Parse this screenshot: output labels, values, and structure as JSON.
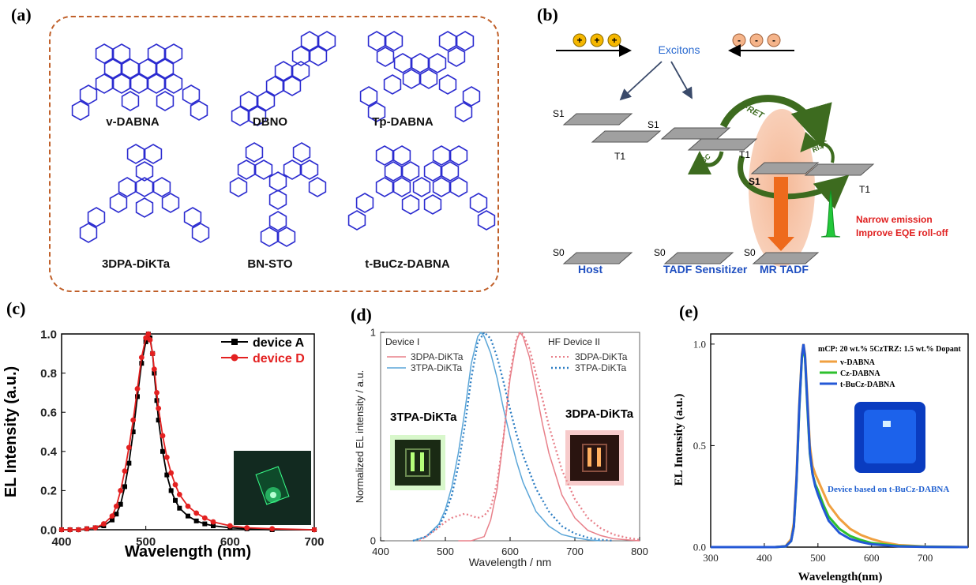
{
  "labels": {
    "a": "(a)",
    "b": "(b)",
    "c": "(c)",
    "d": "(d)",
    "e": "(e)"
  },
  "molecules": [
    "v-DABNA",
    "DBNO",
    "Tp-DABNA",
    "3DPA-DiKTa",
    "BN-STO",
    "t-BuCz-DABNA"
  ],
  "scheme": {
    "excitons": "Excitons",
    "plus": "+",
    "minus": "-",
    "fret": "FRET",
    "risc": "RISC",
    "s1": "S1",
    "t1": "T1",
    "s0": "S0",
    "host": "Host",
    "tadf_sensitizer": "TADF Sensitizer",
    "mr_tadf": "MR TADF",
    "narrow_emission": "Narrow emission",
    "improve_eqe": "Improve EQE roll-off",
    "colors": {
      "blue_label": "#1f4fc0",
      "red_note": "#e02020",
      "arrow_green": "#3d6b1f",
      "glow": "#f4b08a"
    }
  },
  "chart_data": [
    {
      "type": "line",
      "panel": "c",
      "xlabel": "Wavelength (nm)",
      "ylabel": "EL Intensity  (a.u.)",
      "xlim": [
        400,
        700
      ],
      "ylim": [
        0,
        1.0
      ],
      "xticks": [
        400,
        500,
        600,
        700
      ],
      "yticks": [
        "0.0",
        "0.2",
        "0.4",
        "0.6",
        "0.8",
        "1.0"
      ],
      "legend": "top-right",
      "series": [
        {
          "name": "device A",
          "color": "#000000",
          "marker": "square",
          "x": [
            400,
            410,
            420,
            430,
            440,
            450,
            460,
            465,
            470,
            475,
            480,
            485,
            490,
            495,
            500,
            503,
            505,
            508,
            510,
            513,
            515,
            520,
            525,
            530,
            535,
            540,
            550,
            560,
            570,
            580,
            600,
            620,
            650,
            700
          ],
          "y": [
            0,
            0,
            0,
            0.005,
            0.01,
            0.02,
            0.05,
            0.08,
            0.13,
            0.22,
            0.34,
            0.5,
            0.68,
            0.85,
            0.96,
            1.0,
            0.98,
            0.9,
            0.8,
            0.66,
            0.56,
            0.4,
            0.28,
            0.2,
            0.15,
            0.11,
            0.07,
            0.045,
            0.03,
            0.02,
            0.01,
            0.005,
            0,
            0
          ]
        },
        {
          "name": "device D",
          "color": "#e32020",
          "marker": "circle",
          "x": [
            400,
            410,
            420,
            430,
            440,
            450,
            460,
            465,
            470,
            475,
            480,
            485,
            490,
            495,
            500,
            503,
            505,
            508,
            510,
            513,
            515,
            520,
            525,
            530,
            535,
            540,
            550,
            560,
            570,
            580,
            600,
            620,
            650,
            700
          ],
          "y": [
            0,
            0,
            0,
            0.005,
            0.01,
            0.03,
            0.07,
            0.12,
            0.2,
            0.3,
            0.42,
            0.56,
            0.72,
            0.88,
            0.98,
            1.0,
            0.97,
            0.9,
            0.82,
            0.7,
            0.62,
            0.48,
            0.37,
            0.29,
            0.23,
            0.18,
            0.12,
            0.085,
            0.06,
            0.04,
            0.02,
            0.01,
            0.005,
            0
          ]
        }
      ]
    },
    {
      "type": "line",
      "panel": "d",
      "xlabel": "Wavelength / nm",
      "ylabel": "Normalized EL intensity / a.u.",
      "xlim": [
        400,
        800
      ],
      "ylim": [
        0,
        1
      ],
      "xticks": [
        400,
        500,
        600,
        700,
        800
      ],
      "yticks": [
        "0",
        "1"
      ],
      "legend_titles": [
        "Device I",
        "HF Device II"
      ],
      "device_labels": [
        "3TPA-DiKTa",
        "3DPA-DiKTa"
      ],
      "series": [
        {
          "name": "3DPA-DiKTa",
          "group": "Device I",
          "color": "#e8808a",
          "dash": "solid",
          "x": [
            520,
            540,
            560,
            570,
            580,
            590,
            600,
            610,
            615,
            620,
            630,
            640,
            650,
            660,
            680,
            700,
            720,
            740,
            760,
            780,
            800
          ],
          "y": [
            0,
            0,
            0.02,
            0.1,
            0.25,
            0.5,
            0.78,
            0.96,
            1.0,
            0.98,
            0.88,
            0.72,
            0.56,
            0.42,
            0.22,
            0.11,
            0.05,
            0.025,
            0.01,
            0.005,
            0
          ]
        },
        {
          "name": "3TPA-DiKTa",
          "group": "Device I",
          "color": "#5ba6d8",
          "dash": "solid",
          "x": [
            450,
            470,
            490,
            500,
            510,
            520,
            530,
            540,
            550,
            555,
            560,
            570,
            580,
            590,
            600,
            610,
            620,
            640,
            660,
            680,
            700,
            720,
            740
          ],
          "y": [
            0,
            0.02,
            0.08,
            0.15,
            0.26,
            0.42,
            0.62,
            0.85,
            0.98,
            1.0,
            0.98,
            0.9,
            0.78,
            0.63,
            0.5,
            0.38,
            0.28,
            0.14,
            0.07,
            0.03,
            0.015,
            0.005,
            0
          ]
        },
        {
          "name": "3DPA-DiKTa",
          "group": "HF Device II",
          "color": "#e8808a",
          "dash": "dotted",
          "x": [
            460,
            480,
            500,
            510,
            520,
            530,
            540,
            550,
            560,
            570,
            580,
            590,
            600,
            610,
            615,
            620,
            630,
            640,
            650,
            660,
            680,
            700,
            720,
            740,
            760,
            780,
            800
          ],
          "y": [
            0,
            0.04,
            0.09,
            0.11,
            0.12,
            0.13,
            0.12,
            0.11,
            0.12,
            0.16,
            0.28,
            0.5,
            0.8,
            0.97,
            1.0,
            0.99,
            0.92,
            0.8,
            0.68,
            0.55,
            0.34,
            0.2,
            0.11,
            0.06,
            0.03,
            0.015,
            0.005
          ]
        },
        {
          "name": "3TPA-DiKTa",
          "group": "HF Device II",
          "color": "#2f7fc4",
          "dash": "dotted",
          "x": [
            450,
            470,
            490,
            500,
            510,
            520,
            530,
            540,
            550,
            560,
            570,
            580,
            590,
            600,
            610,
            620,
            640,
            660,
            680,
            700,
            720,
            740,
            760
          ],
          "y": [
            0,
            0.02,
            0.07,
            0.13,
            0.22,
            0.36,
            0.55,
            0.78,
            0.95,
            1.0,
            0.97,
            0.88,
            0.76,
            0.63,
            0.51,
            0.41,
            0.25,
            0.14,
            0.07,
            0.035,
            0.015,
            0.005,
            0
          ]
        }
      ]
    },
    {
      "type": "line",
      "panel": "e",
      "xlabel": "Wavelength(nm)",
      "ylabel": "EL Intensity (a.u.)",
      "xlim": [
        300,
        780
      ],
      "ylim": [
        0,
        1.05
      ],
      "xticks": [
        300,
        400,
        500,
        600,
        700
      ],
      "yticks": [
        "0.0",
        "0.5",
        "1.0"
      ],
      "legend_title": "mCP: 20 wt.% 5CzTRZ: 1.5 wt.% Dopant",
      "annotation": "Device based on t-BuCz-DABNA",
      "series": [
        {
          "name": "v-DABNA",
          "color": "#f0a040",
          "x": [
            300,
            420,
            440,
            450,
            455,
            460,
            465,
            470,
            473,
            476,
            480,
            485,
            490,
            495,
            500,
            510,
            520,
            540,
            560,
            580,
            600,
            620,
            650,
            700,
            780
          ],
          "y": [
            0,
            0,
            0.005,
            0.04,
            0.12,
            0.35,
            0.7,
            0.95,
            1.0,
            0.95,
            0.75,
            0.5,
            0.4,
            0.36,
            0.33,
            0.27,
            0.21,
            0.14,
            0.09,
            0.06,
            0.04,
            0.025,
            0.01,
            0.003,
            0
          ]
        },
        {
          "name": "Cz-DABNA",
          "color": "#2ec02e",
          "x": [
            300,
            420,
            440,
            450,
            455,
            460,
            465,
            470,
            473,
            476,
            480,
            485,
            490,
            495,
            500,
            510,
            520,
            540,
            560,
            580,
            600,
            650,
            700,
            780
          ],
          "y": [
            0,
            0,
            0.004,
            0.03,
            0.1,
            0.32,
            0.67,
            0.93,
            0.99,
            0.93,
            0.7,
            0.46,
            0.36,
            0.31,
            0.28,
            0.21,
            0.15,
            0.09,
            0.055,
            0.035,
            0.02,
            0.006,
            0.002,
            0
          ]
        },
        {
          "name": "t-BuCz-DABNA",
          "color": "#2458d6",
          "x": [
            300,
            420,
            440,
            450,
            455,
            460,
            465,
            470,
            473,
            476,
            480,
            485,
            490,
            495,
            500,
            510,
            520,
            540,
            560,
            580,
            600,
            650,
            700,
            780
          ],
          "y": [
            0,
            0,
            0.004,
            0.03,
            0.1,
            0.33,
            0.68,
            0.94,
            1.0,
            0.94,
            0.72,
            0.47,
            0.36,
            0.3,
            0.26,
            0.19,
            0.13,
            0.07,
            0.04,
            0.025,
            0.014,
            0.004,
            0.001,
            0
          ]
        }
      ]
    }
  ]
}
